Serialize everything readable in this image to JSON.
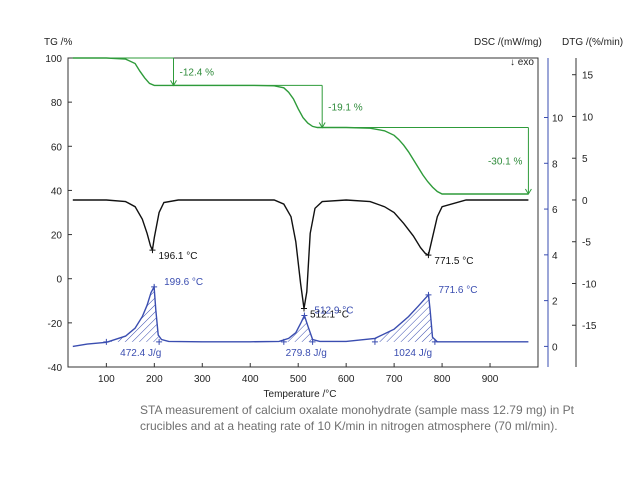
{
  "caption": "STA measurement of calcium oxalate monohydrate (sample mass 12.79 mg) in Pt crucibles and at a heating rate of 10 K/min in nitrogen atmosphere (70 ml/min).",
  "colors": {
    "tg": "#2e9b3a",
    "dsc": "#3a4db0",
    "dtg": "#111111",
    "axis": "#333333"
  },
  "chart_data": {
    "type": "line",
    "xlabel": "Temperature /°C",
    "xlim": [
      20,
      1000
    ],
    "xticks": [
      100,
      200,
      300,
      400,
      500,
      600,
      700,
      800,
      900
    ],
    "axes": {
      "tg": {
        "label": "TG /%",
        "ylim": [
          -40,
          100
        ],
        "ticks": [
          100,
          80,
          60,
          40,
          20,
          0,
          -20,
          -40
        ]
      },
      "dsc": {
        "label": "DSC /(mW/mg)",
        "ylim": [
          -0.9,
          12.6
        ],
        "ticks": [
          10,
          8,
          6,
          4,
          2,
          0
        ],
        "note": "↓ exo"
      },
      "dtg": {
        "label": "DTG /(%/min)",
        "ylim": [
          -20,
          17
        ],
        "ticks": [
          15,
          10,
          5,
          0,
          -5,
          -10,
          -15
        ]
      }
    },
    "series": [
      {
        "key": "tg",
        "axis": "tg",
        "x": [
          30,
          100,
          140,
          160,
          170,
          180,
          190,
          200,
          250,
          300,
          400,
          450,
          470,
          480,
          490,
          500,
          510,
          520,
          530,
          540,
          550,
          600,
          650,
          680,
          700,
          710,
          720,
          730,
          740,
          750,
          760,
          770,
          780,
          790,
          800,
          850,
          900,
          980
        ],
        "y": [
          100,
          100,
          99.5,
          97.5,
          94,
          91,
          88.5,
          87.6,
          87.6,
          87.6,
          87.6,
          87.4,
          86.5,
          84.5,
          81.5,
          77,
          73,
          70.5,
          69,
          68.5,
          68.5,
          68.5,
          68.2,
          67,
          65,
          63,
          60.5,
          57.5,
          54,
          50.5,
          47,
          44,
          41.5,
          39.5,
          38.4,
          38.4,
          38.4,
          38.4
        ]
      },
      {
        "key": "dtg",
        "axis": "dtg",
        "x": [
          30,
          100,
          140,
          160,
          175,
          185,
          192,
          196,
          200,
          210,
          220,
          250,
          300,
          400,
          450,
          470,
          485,
          495,
          505,
          512,
          518,
          525,
          535,
          550,
          600,
          650,
          680,
          700,
          720,
          740,
          755,
          765,
          771.5,
          778,
          790,
          800,
          850,
          900,
          980
        ],
        "y": [
          0,
          0,
          -0.2,
          -0.8,
          -2.3,
          -4,
          -5.5,
          -6,
          -4.5,
          -1.5,
          -0.3,
          0,
          0,
          0,
          0,
          -0.5,
          -2,
          -5,
          -10,
          -13,
          -11,
          -4,
          -1,
          -0.2,
          0,
          -0.2,
          -0.8,
          -1.5,
          -2.8,
          -4.3,
          -5.7,
          -6.4,
          -6.6,
          -5,
          -2,
          -0.8,
          0,
          0,
          0
        ]
      },
      {
        "key": "dsc",
        "axis": "dsc",
        "x": [
          30,
          60,
          100,
          140,
          160,
          175,
          185,
          193,
          199.6,
          203,
          208,
          215,
          230,
          300,
          400,
          460,
          480,
          495,
          505,
          512.9,
          520,
          530,
          545,
          600,
          660,
          700,
          730,
          750,
          765,
          771.6,
          775,
          780,
          790,
          850,
          900,
          980
        ],
        "y": [
          0.0,
          0.1,
          0.18,
          0.45,
          0.8,
          1.3,
          1.8,
          2.35,
          2.6,
          1.6,
          0.5,
          0.3,
          0.22,
          0.2,
          0.2,
          0.22,
          0.35,
          0.6,
          1.0,
          1.35,
          0.9,
          0.3,
          0.22,
          0.22,
          0.35,
          0.75,
          1.3,
          1.75,
          2.1,
          2.25,
          1.6,
          0.4,
          0.2,
          0.2,
          0.2,
          0.2
        ]
      }
    ],
    "tg_steps": [
      {
        "label": "-12.4 %",
        "x": 240,
        "from": 100,
        "to": 87.6
      },
      {
        "label": "-19.1 %",
        "x": 550,
        "from": 87.6,
        "to": 68.5
      },
      {
        "label": "-30.1 %",
        "x": 980,
        "from": 68.5,
        "to": 38.4
      }
    ],
    "dtg_peaks": [
      {
        "label": "196.1 °C",
        "x": 196.1,
        "y": -6
      },
      {
        "label": "512.1 °C",
        "x": 512.1,
        "y": -13
      },
      {
        "label": "771.5 °C",
        "x": 771.5,
        "y": -6.6
      }
    ],
    "dsc_peaks": [
      {
        "label": "199.6 °C",
        "x": 199.6,
        "y": 2.6
      },
      {
        "label": "512.9 °C",
        "x": 512.9,
        "y": 1.35
      },
      {
        "label": "771.6 °C",
        "x": 771.6,
        "y": 2.25
      }
    ],
    "dsc_areas": [
      {
        "label": "472.4 J/g",
        "x_start": 100,
        "x_end": 210
      },
      {
        "label": "279.8 J/g",
        "x_start": 470,
        "x_end": 530
      },
      {
        "label": "1024 J/g",
        "x_start": 660,
        "x_end": 785
      }
    ]
  }
}
